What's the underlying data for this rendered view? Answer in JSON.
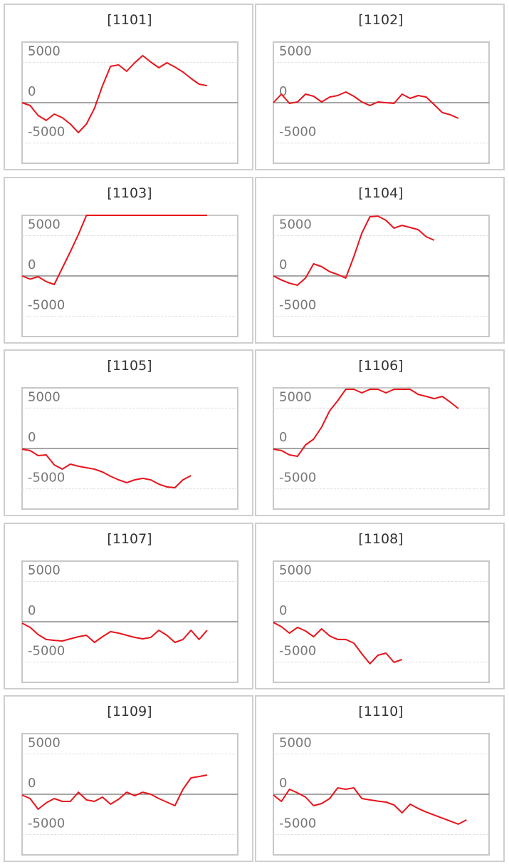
{
  "chart_data": [
    {
      "type": "line",
      "title": "[1101]",
      "color": "#e8141b",
      "ylim": [
        -7500,
        7500
      ],
      "yticks": [
        -5000,
        0,
        5000
      ],
      "grid": true,
      "values": [
        0,
        -350,
        -1590,
        -2200,
        -1410,
        -1850,
        -2650,
        -3700,
        -2650,
        -700,
        2100,
        4500,
        4680,
        3880,
        4940,
        5820,
        5030,
        4320,
        4940,
        4410,
        3790,
        3000,
        2290,
        2100
      ]
    },
    {
      "type": "line",
      "title": "[1102]",
      "color": "#e8141b",
      "ylim": [
        -7500,
        7500
      ],
      "yticks": [
        -5000,
        0,
        5000
      ],
      "grid": true,
      "values": [
        0,
        1060,
        -90,
        90,
        1060,
        790,
        90,
        700,
        880,
        1320,
        790,
        90,
        -350,
        90,
        0,
        -90,
        1060,
        530,
        880,
        700,
        -260,
        -1230,
        -1500,
        -1940
      ]
    },
    {
      "type": "line",
      "title": "[1103]",
      "color": "#e8141b",
      "ylim": [
        -7500,
        7500
      ],
      "yticks": [
        -5000,
        0,
        5000
      ],
      "grid": true,
      "values": [
        0,
        -400,
        -100,
        -700,
        -1060,
        970,
        3000,
        5120,
        7500,
        7500,
        7500,
        7500,
        7500,
        7500,
        7500,
        7500,
        7500,
        7500,
        7500,
        7500,
        7500,
        7500,
        7500,
        7500
      ]
    },
    {
      "type": "line",
      "title": "[1104]",
      "color": "#e8141b",
      "ylim": [
        -7500,
        7500
      ],
      "yticks": [
        -5000,
        0,
        5000
      ],
      "grid": true,
      "values": [
        0,
        -500,
        -900,
        -1150,
        -260,
        1500,
        1150,
        530,
        180,
        -260,
        2380,
        5290,
        7320,
        7400,
        6880,
        5910,
        6260,
        6000,
        5730,
        4850,
        4410
      ]
    },
    {
      "type": "line",
      "title": "[1105]",
      "color": "#e8141b",
      "ylim": [
        -7500,
        7500
      ],
      "yticks": [
        -5000,
        0,
        5000
      ],
      "grid": true,
      "values": [
        -90,
        -260,
        -880,
        -790,
        -2030,
        -2560,
        -1940,
        -2200,
        -2380,
        -2560,
        -2910,
        -3440,
        -3880,
        -4230,
        -3880,
        -3700,
        -3880,
        -4410,
        -4760,
        -4850,
        -3880,
        -3350
      ]
    },
    {
      "type": "line",
      "title": "[1106]",
      "color": "#e8141b",
      "ylim": [
        -7500,
        7500
      ],
      "yticks": [
        -5000,
        0,
        5000
      ],
      "grid": true,
      "values": [
        -90,
        -260,
        -790,
        -970,
        440,
        1150,
        2650,
        4670,
        5910,
        7320,
        7320,
        6880,
        7320,
        7320,
        6880,
        7320,
        7320,
        7320,
        6700,
        6440,
        6170,
        6440,
        5730,
        4940
      ]
    },
    {
      "type": "line",
      "title": "[1107]",
      "color": "#e8141b",
      "ylim": [
        -7500,
        7500
      ],
      "yticks": [
        -5000,
        0,
        5000
      ],
      "grid": true,
      "values": [
        -180,
        -700,
        -1590,
        -2200,
        -2300,
        -2380,
        -2120,
        -1850,
        -1680,
        -2560,
        -1850,
        -1230,
        -1410,
        -1680,
        -1940,
        -2120,
        -1940,
        -1060,
        -1680,
        -2560,
        -2200,
        -1060,
        -2200,
        -1060
      ]
    },
    {
      "type": "line",
      "title": "[1108]",
      "color": "#e8141b",
      "ylim": [
        -7500,
        7500
      ],
      "yticks": [
        -5000,
        0,
        5000
      ],
      "grid": true,
      "values": [
        -90,
        -620,
        -1410,
        -700,
        -1150,
        -1850,
        -880,
        -1760,
        -2200,
        -2200,
        -2650,
        -3970,
        -5200,
        -4150,
        -3880,
        -5030,
        -4670
      ]
    },
    {
      "type": "line",
      "title": "[1109]",
      "color": "#e8141b",
      "ylim": [
        -7500,
        7500
      ],
      "yticks": [
        -5000,
        0,
        5000
      ],
      "grid": true,
      "values": [
        -90,
        -530,
        -1850,
        -1060,
        -530,
        -880,
        -880,
        260,
        -700,
        -880,
        -350,
        -1230,
        -620,
        260,
        -180,
        260,
        0,
        -530,
        -970,
        -1410,
        620,
        2030,
        2200,
        2380
      ]
    },
    {
      "type": "line",
      "title": "[1110]",
      "color": "#e8141b",
      "ylim": [
        -7500,
        7500
      ],
      "yticks": [
        -5000,
        0,
        5000
      ],
      "grid": true,
      "values": [
        -90,
        -880,
        620,
        180,
        -350,
        -1410,
        -1150,
        -530,
        790,
        620,
        790,
        -530,
        -700,
        -850,
        -970,
        -1320,
        -2290,
        -1230,
        -1760,
        -2200,
        -2580,
        -2950,
        -3330,
        -3700,
        -3170
      ]
    }
  ]
}
